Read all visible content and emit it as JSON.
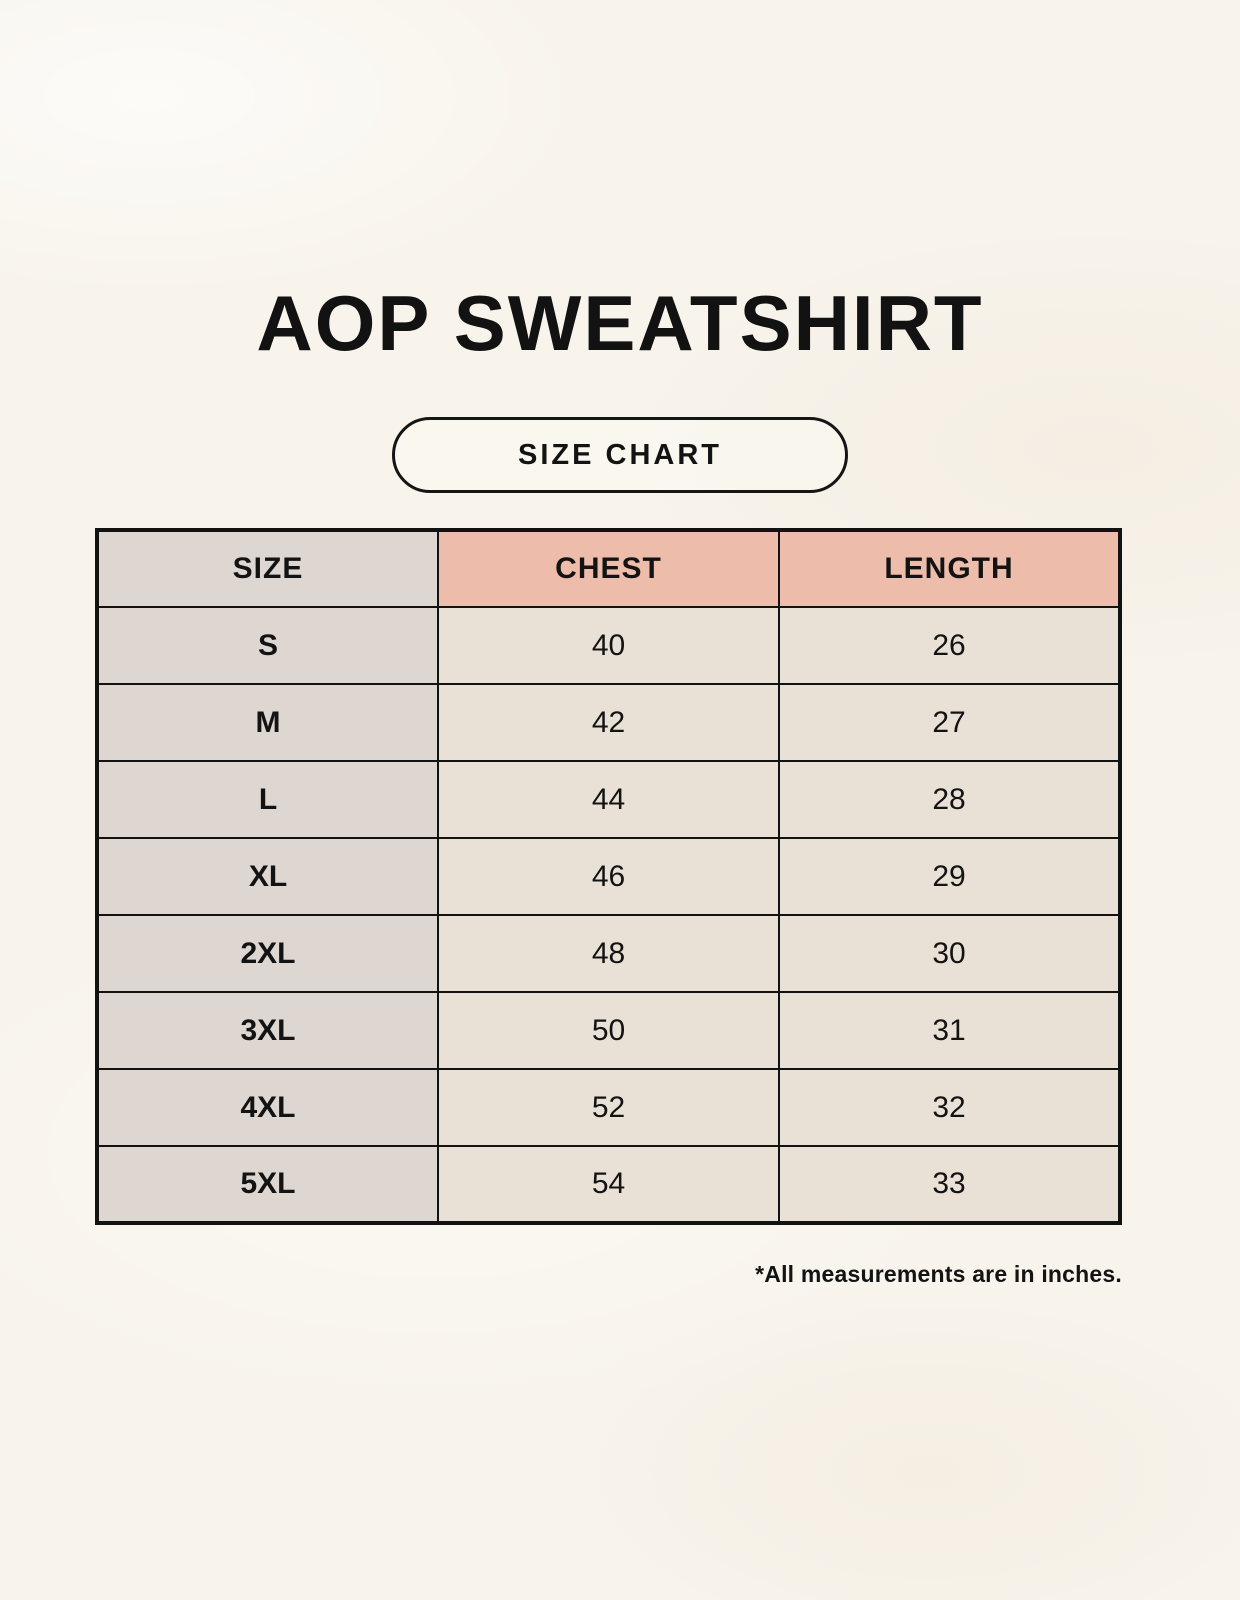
{
  "page": {
    "badge_label": "SIZE CHART"
  },
  "chart_data": {
    "type": "table",
    "title": "AOP SWEATSHIRT",
    "columns": [
      "SIZE",
      "CHEST",
      "LENGTH"
    ],
    "rows": [
      [
        "S",
        40,
        26
      ],
      [
        "M",
        42,
        27
      ],
      [
        "L",
        44,
        28
      ],
      [
        "XL",
        46,
        29
      ],
      [
        "2XL",
        48,
        30
      ],
      [
        "3XL",
        50,
        31
      ],
      [
        "4XL",
        52,
        32
      ],
      [
        "5XL",
        54,
        33
      ]
    ],
    "units_note": "*All measurements are in inches.",
    "legend_position": "none",
    "grid": true
  },
  "colors": {
    "page_background": "#f8f4ec",
    "size_column_background": "#ded6d1",
    "header_accent_background": "#eebcab",
    "value_cell_background": "#e9e1d5",
    "border": "#121212",
    "text": "#131313"
  }
}
